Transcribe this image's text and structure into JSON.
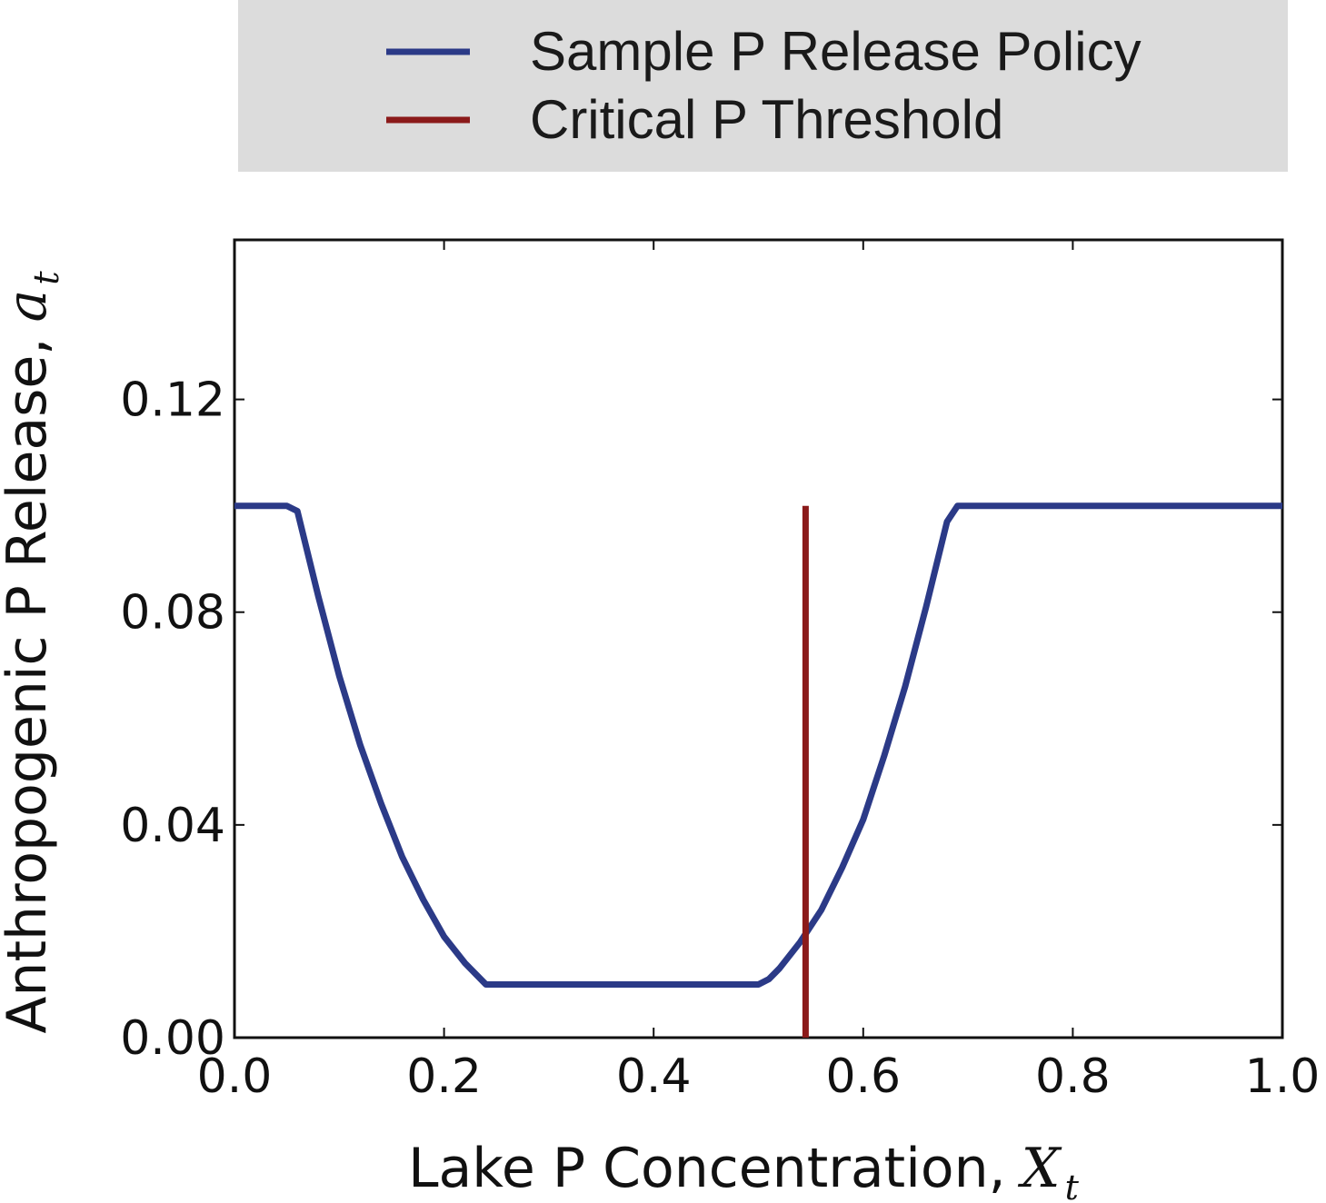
{
  "chart_data": {
    "type": "line",
    "xlabel": "Lake P Concentration,",
    "xlabel_symbol": "X",
    "xlabel_subscript": "t",
    "ylabel": "Anthropogenic P Release,",
    "ylabel_symbol": "a",
    "ylabel_subscript": "t",
    "xlim": [
      0.0,
      1.0
    ],
    "ylim": [
      0.0,
      0.15
    ],
    "xticks": [
      0.0,
      0.2,
      0.4,
      0.6,
      0.8,
      1.0
    ],
    "xtick_labels": [
      "0.0",
      "0.2",
      "0.4",
      "0.6",
      "0.8",
      "1.0"
    ],
    "yticks": [
      0.0,
      0.04,
      0.08,
      0.12
    ],
    "ytick_labels": [
      "0.00",
      "0.04",
      "0.08",
      "0.12"
    ],
    "grid": false,
    "legend_position": "above plot",
    "series": [
      {
        "name": "Sample P Release Policy",
        "color": "#2b3a87",
        "x": [
          0.0,
          0.05,
          0.06,
          0.08,
          0.1,
          0.12,
          0.14,
          0.16,
          0.18,
          0.2,
          0.22,
          0.24,
          0.3,
          0.4,
          0.5,
          0.51,
          0.52,
          0.54,
          0.56,
          0.58,
          0.6,
          0.62,
          0.64,
          0.66,
          0.68,
          0.69,
          0.8,
          0.9,
          1.0
        ],
        "y": [
          0.1,
          0.1,
          0.099,
          0.083,
          0.068,
          0.055,
          0.044,
          0.034,
          0.026,
          0.019,
          0.014,
          0.01,
          0.01,
          0.01,
          0.01,
          0.011,
          0.013,
          0.018,
          0.024,
          0.032,
          0.041,
          0.053,
          0.066,
          0.081,
          0.097,
          0.1,
          0.1,
          0.1,
          0.1
        ]
      },
      {
        "name": "Critical P Threshold",
        "color": "#8b1a1a",
        "x": [
          0.545,
          0.545
        ],
        "y": [
          0.0,
          0.1
        ]
      }
    ]
  }
}
